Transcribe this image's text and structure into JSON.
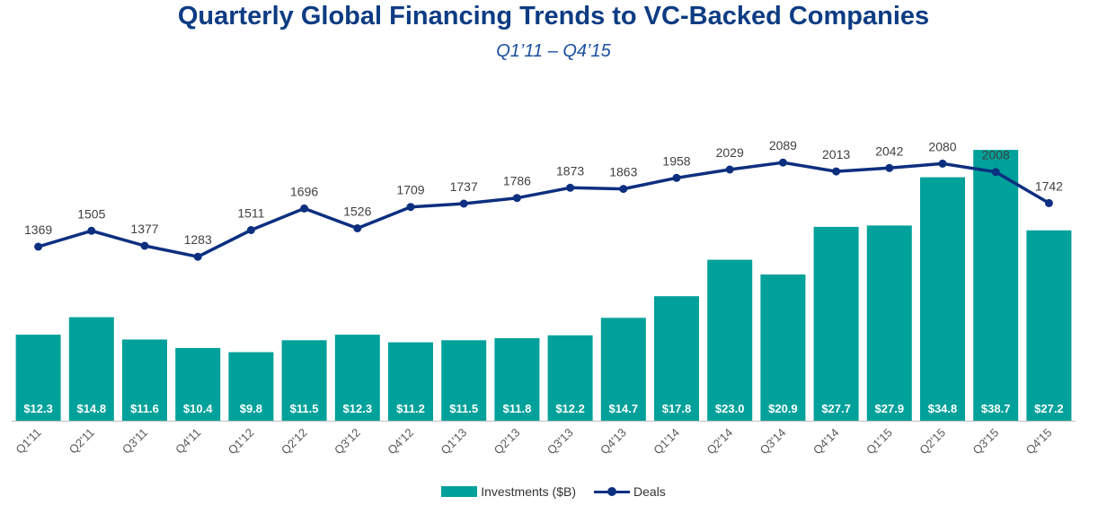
{
  "colors": {
    "title": "#0d3c83",
    "bars": "#00a19a",
    "line": "#0d2f80",
    "bar_label": "#ffffff"
  },
  "chart_data": {
    "type": "bar",
    "title": "Quarterly Global Financing Trends to VC-Backed Companies",
    "subtitle": "Q1’11 – Q4’15",
    "categories": [
      "Q1'11",
      "Q2'11",
      "Q3'11",
      "Q4'11",
      "Q1'12",
      "Q2'12",
      "Q3'12",
      "Q4'12",
      "Q1'13",
      "Q2'13",
      "Q3'13",
      "Q4'13",
      "Q1'14",
      "Q2'14",
      "Q3'14",
      "Q4'14",
      "Q1'15",
      "Q2'15",
      "Q3'15",
      "Q4'15"
    ],
    "series": [
      {
        "name": "Investments ($B)",
        "type": "bar",
        "values": [
          12.3,
          14.8,
          11.6,
          10.4,
          9.8,
          11.5,
          12.3,
          11.2,
          11.5,
          11.8,
          12.2,
          14.7,
          17.8,
          23.0,
          20.9,
          27.7,
          27.9,
          34.8,
          38.7,
          27.2
        ],
        "labels": [
          "$12.3",
          "$14.8",
          "$11.6",
          "$10.4",
          "$9.8",
          "$11.5",
          "$12.3",
          "$11.2",
          "$11.5",
          "$11.8",
          "$12.2",
          "$14.7",
          "$17.8",
          "$23.0",
          "$20.9",
          "$27.7",
          "$27.9",
          "$34.8",
          "$38.7",
          "$27.2"
        ]
      },
      {
        "name": "Deals",
        "type": "line",
        "values": [
          1369,
          1505,
          1377,
          1283,
          1511,
          1696,
          1526,
          1709,
          1737,
          1786,
          1873,
          1863,
          1958,
          2029,
          2089,
          2013,
          2042,
          2080,
          2008,
          1742
        ],
        "labels": [
          "1369",
          "1505",
          "1377",
          "1283",
          "1511",
          "1696",
          "1526",
          "1709",
          "1737",
          "1786",
          "1873",
          "1863",
          "1958",
          "2029",
          "2089",
          "2013",
          "2042",
          "2080",
          "2008",
          "1742"
        ]
      }
    ],
    "legend_position": "bottom",
    "grid": false
  }
}
